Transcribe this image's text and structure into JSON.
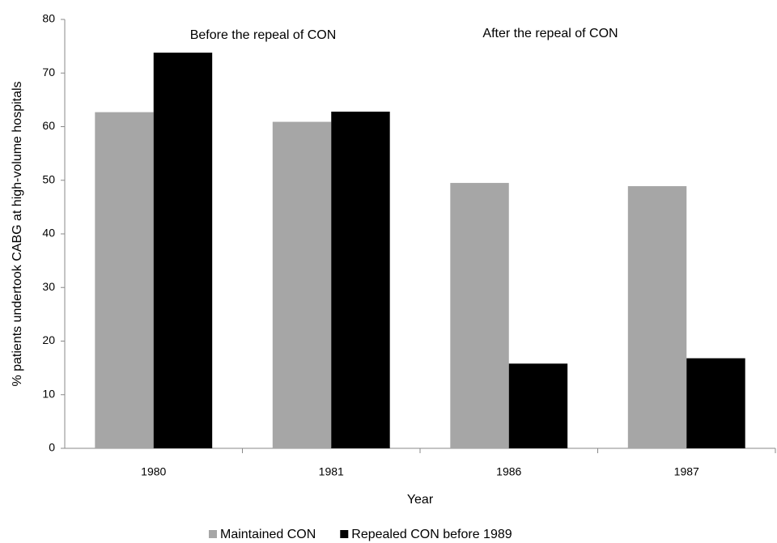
{
  "chart_data": {
    "type": "bar",
    "y_label": "% patients undertook CABG at high-volume hospitals",
    "x_label": "Year",
    "annotations": [
      "Before the repeal of CON",
      "After the repeal of CON"
    ],
    "categories": [
      "1980",
      "1981",
      "1986",
      "1987"
    ],
    "series": [
      {
        "name": "Maintained CON",
        "color": "#a6a6a6",
        "values": [
          62.7,
          60.9,
          49.5,
          48.9
        ]
      },
      {
        "name": "Repealed CON before 1989",
        "color": "#000000",
        "values": [
          73.8,
          62.8,
          15.8,
          16.8
        ]
      }
    ],
    "ylim": [
      0,
      80
    ],
    "yticks": [
      0,
      10,
      20,
      30,
      40,
      50,
      60,
      70,
      80
    ],
    "grid": false,
    "legend": "bottom"
  }
}
